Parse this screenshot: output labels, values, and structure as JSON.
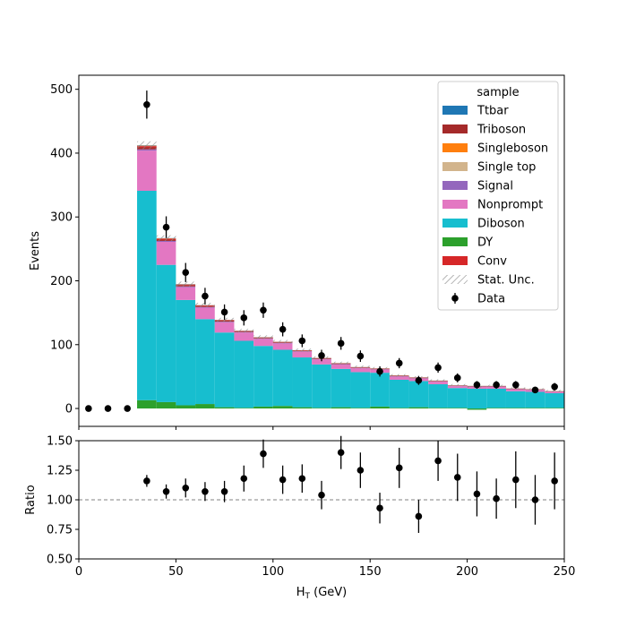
{
  "chart_data": {
    "type": "bar",
    "stacked": true,
    "x_bin_centers": [
      5,
      15,
      25,
      35,
      45,
      55,
      65,
      75,
      85,
      95,
      105,
      115,
      125,
      135,
      145,
      155,
      165,
      175,
      185,
      195,
      205,
      215,
      225,
      235,
      245
    ],
    "bin_width": 10,
    "xlim": [
      0,
      250
    ],
    "xticks": [
      0,
      50,
      100,
      150,
      200,
      250
    ],
    "xlabel": "H",
    "xlabel_sub": "T",
    "xlabel_unit": " (GeV)",
    "top_panel": {
      "ylabel": "Events",
      "ylim": [
        -28,
        522
      ],
      "yticks": [
        0,
        100,
        200,
        300,
        400,
        500
      ],
      "stack_order": [
        "DY",
        "Diboson",
        "Nonprompt",
        "Signal",
        "Triboson",
        "Conv",
        "Single top",
        "Singleboson",
        "Ttbar"
      ],
      "series": [
        {
          "name": "Ttbar",
          "color": "#1f77b4",
          "values": [
            0,
            0,
            0,
            0.5,
            0.3,
            0.3,
            0.2,
            0.2,
            0.2,
            0.2,
            0.1,
            0.1,
            0.1,
            0.1,
            0.1,
            0.1,
            0.1,
            0.1,
            0.1,
            0.1,
            0.1,
            0.1,
            0.1,
            0.1,
            0.1
          ]
        },
        {
          "name": "Triboson",
          "color": "#a52a2a",
          "values": [
            0,
            0,
            0,
            3,
            2,
            2,
            1.5,
            1.5,
            1,
            1,
            1,
            1,
            1,
            1,
            0.8,
            0.8,
            0.8,
            0.8,
            0.8,
            0.6,
            0.6,
            0.6,
            0.6,
            0.5,
            0.5
          ]
        },
        {
          "name": "Singleboson",
          "color": "#ff7f0e",
          "values": [
            0,
            0,
            0,
            0.5,
            0.3,
            0.2,
            0.2,
            0.2,
            0.1,
            0.1,
            0.1,
            0.1,
            0.1,
            0.1,
            0.1,
            0.1,
            0.1,
            0.1,
            0.1,
            0.1,
            0.1,
            0.1,
            0.1,
            0.1,
            0.1
          ]
        },
        {
          "name": "Single top",
          "color": "#d2b48c",
          "values": [
            0,
            0,
            0,
            0.5,
            0.3,
            0.3,
            0.2,
            0.2,
            0.2,
            0.2,
            0.2,
            0.1,
            0.1,
            0.1,
            0.1,
            0.1,
            0.1,
            0.1,
            0.1,
            0.1,
            0.1,
            0.1,
            0.1,
            0.1,
            0.1
          ]
        },
        {
          "name": "Signal",
          "color": "#9467bd",
          "values": [
            0,
            0,
            0,
            2,
            1.5,
            1.2,
            1,
            1,
            0.8,
            0.8,
            0.8,
            0.7,
            0.6,
            0.6,
            0.6,
            0.5,
            0.5,
            0.5,
            0.5,
            0.5,
            0.4,
            0.4,
            0.4,
            0.4,
            0.4
          ]
        },
        {
          "name": "Nonprompt",
          "color": "#e377c2",
          "values": [
            0,
            0,
            0,
            63,
            36,
            20,
            18,
            16,
            13,
            11,
            10,
            9,
            8,
            7,
            6,
            5,
            5,
            4,
            4,
            3,
            3,
            3,
            3,
            3,
            2
          ]
        },
        {
          "name": "Diboson",
          "color": "#17becf",
          "values": [
            0,
            0,
            0,
            328,
            215,
            165,
            133,
            117,
            105,
            95,
            88,
            78,
            68,
            60,
            56,
            53,
            44,
            41,
            37,
            31,
            31,
            30,
            26,
            25,
            23
          ]
        },
        {
          "name": "DY",
          "color": "#2ca02c",
          "values": [
            0,
            0,
            0,
            13,
            10,
            5,
            7,
            2,
            1,
            3,
            4,
            2,
            1,
            2,
            1,
            3,
            1,
            2,
            1,
            1,
            -2,
            1,
            1,
            1,
            1
          ]
        },
        {
          "name": "Conv",
          "color": "#d62728",
          "values": [
            0,
            0,
            0,
            2,
            1.5,
            1,
            1,
            0.8,
            0.6,
            0.5,
            0.5,
            0.4,
            0.4,
            0.3,
            0.3,
            0.3,
            0.2,
            0.2,
            0.2,
            0.2,
            0.2,
            0.2,
            0.2,
            0.2,
            0.2
          ]
        }
      ],
      "stat_unc_halfwidth": [
        0,
        0,
        0,
        6,
        4.5,
        3.8,
        3.4,
        3.1,
        2.9,
        2.8,
        2.6,
        2.5,
        2.3,
        2.2,
        2.1,
        2.0,
        1.9,
        1.8,
        1.8,
        1.7,
        1.6,
        1.6,
        1.5,
        1.5,
        1.5
      ],
      "data": {
        "name": "Data",
        "values": [
          0,
          0,
          0,
          476,
          284,
          213,
          176,
          151,
          142,
          154,
          124,
          106,
          83,
          102,
          82,
          58,
          71,
          44,
          64,
          48,
          37,
          37,
          37,
          29,
          34
        ],
        "errors": [
          0,
          0,
          0,
          22,
          17,
          15,
          13,
          12,
          12,
          12,
          11,
          10,
          9,
          10,
          9,
          8,
          8,
          7,
          8,
          7,
          6,
          6,
          6,
          5,
          6
        ]
      },
      "legend": {
        "title": "sample",
        "placement": "top-right",
        "entries": [
          "Ttbar",
          "Triboson",
          "Singleboson",
          "Single top",
          "Signal",
          "Nonprompt",
          "Diboson",
          "DY",
          "Conv",
          "Stat. Unc.",
          "Data"
        ]
      }
    },
    "ratio_panel": {
      "ylabel": "Ratio",
      "ylim": [
        0.5,
        1.5
      ],
      "yticks": [
        "0.50",
        "0.75",
        "1.00",
        "1.25",
        "1.50"
      ],
      "reference": 1.0,
      "values": [
        null,
        null,
        null,
        1.16,
        1.07,
        1.1,
        1.07,
        1.07,
        1.18,
        1.39,
        1.17,
        1.18,
        1.04,
        1.4,
        1.25,
        0.93,
        1.27,
        0.86,
        1.33,
        1.19,
        1.05,
        1.01,
        1.17,
        1.0,
        1.16
      ],
      "errors": [
        null,
        null,
        null,
        0.05,
        0.06,
        0.08,
        0.08,
        0.09,
        0.11,
        0.12,
        0.12,
        0.12,
        0.12,
        0.14,
        0.15,
        0.13,
        0.17,
        0.14,
        0.17,
        0.2,
        0.19,
        0.17,
        0.24,
        0.21,
        0.24
      ]
    }
  }
}
